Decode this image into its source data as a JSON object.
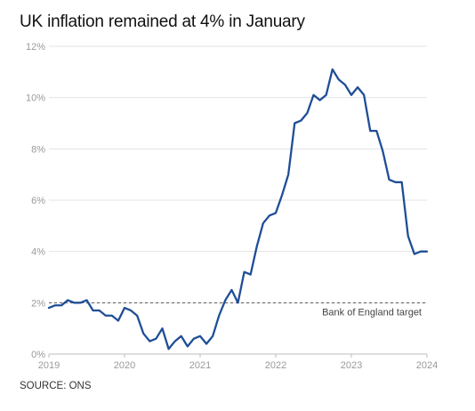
{
  "chart_data": {
    "type": "line",
    "title": "UK inflation remained at 4% in January",
    "source": "SOURCE: ONS",
    "xlabel": "",
    "ylabel": "",
    "x_ticks": [
      "2019",
      "2020",
      "2021",
      "2022",
      "2023",
      "2024"
    ],
    "y_ticks": [
      "0%",
      "2%",
      "4%",
      "6%",
      "8%",
      "10%",
      "12%"
    ],
    "xlim": [
      "2019-01",
      "2024-01"
    ],
    "ylim": [
      0,
      12
    ],
    "grid": "horizontal",
    "series": [
      {
        "color": "#1f4e96",
        "x": [
          "2019-01",
          "2019-02",
          "2019-03",
          "2019-04",
          "2019-05",
          "2019-06",
          "2019-07",
          "2019-08",
          "2019-09",
          "2019-10",
          "2019-11",
          "2019-12",
          "2020-01",
          "2020-02",
          "2020-03",
          "2020-04",
          "2020-05",
          "2020-06",
          "2020-07",
          "2020-08",
          "2020-09",
          "2020-10",
          "2020-11",
          "2020-12",
          "2021-01",
          "2021-02",
          "2021-03",
          "2021-04",
          "2021-05",
          "2021-06",
          "2021-07",
          "2021-08",
          "2021-09",
          "2021-10",
          "2021-11",
          "2021-12",
          "2022-01",
          "2022-02",
          "2022-03",
          "2022-04",
          "2022-05",
          "2022-06",
          "2022-07",
          "2022-08",
          "2022-09",
          "2022-10",
          "2022-11",
          "2022-12",
          "2023-01",
          "2023-02",
          "2023-03",
          "2023-04",
          "2023-05",
          "2023-06",
          "2023-07",
          "2023-08",
          "2023-09",
          "2023-10",
          "2023-11",
          "2023-12",
          "2024-01"
        ],
        "y": [
          1.8,
          1.9,
          1.9,
          2.1,
          2.0,
          2.0,
          2.1,
          1.7,
          1.7,
          1.5,
          1.5,
          1.3,
          1.8,
          1.7,
          1.5,
          0.8,
          0.5,
          0.6,
          1.0,
          0.2,
          0.5,
          0.7,
          0.3,
          0.6,
          0.7,
          0.4,
          0.7,
          1.5,
          2.1,
          2.5,
          2.0,
          3.2,
          3.1,
          4.2,
          5.1,
          5.4,
          5.5,
          6.2,
          7.0,
          9.0,
          9.1,
          9.4,
          10.1,
          9.9,
          10.1,
          11.1,
          10.7,
          10.5,
          10.1,
          10.4,
          10.1,
          8.7,
          8.7,
          7.9,
          6.8,
          6.7,
          6.7,
          4.6,
          3.9,
          4.0,
          4.0
        ]
      }
    ],
    "reference_line": {
      "y": 2,
      "label": "Bank of England target",
      "style": "dashed",
      "color": "#555555"
    }
  }
}
